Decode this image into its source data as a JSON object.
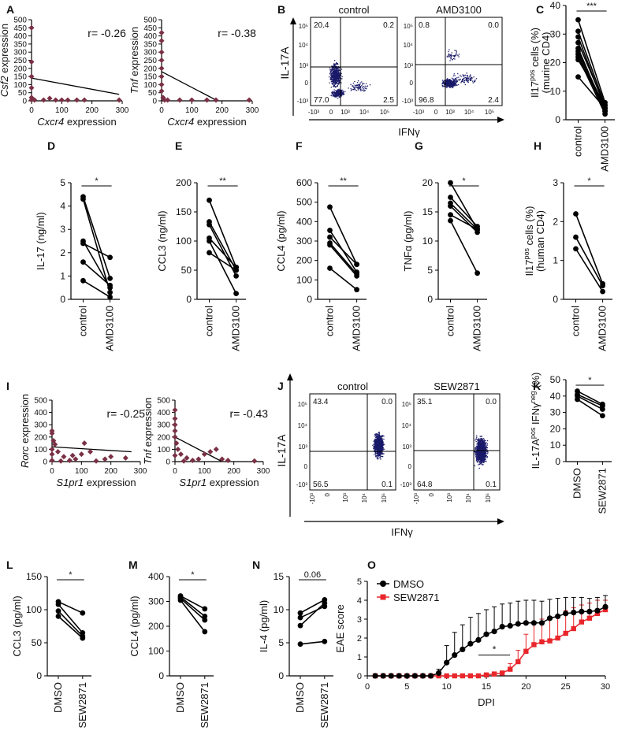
{
  "chart_data": [
    {
      "id": "A1",
      "panel": "A",
      "type": "scatter",
      "xlabel": "Cxcr4 expression",
      "ylabel": "Csf2 expression",
      "ylabel_italic": "Csf2",
      "xlabel_italic": "Cxcr4",
      "xticks": [
        0,
        100,
        200,
        300
      ],
      "yticks": [
        0,
        50,
        100,
        150,
        200,
        250,
        300,
        350,
        400,
        450,
        500
      ],
      "xlim": [
        0,
        300
      ],
      "ylim": [
        0,
        500
      ],
      "annotation": "r= -0.26",
      "point_color": "#7a3045",
      "points": [
        [
          0,
          450
        ],
        [
          0,
          240
        ],
        [
          0,
          150
        ],
        [
          0,
          80
        ],
        [
          0,
          20
        ],
        [
          0,
          5
        ],
        [
          10,
          5
        ],
        [
          40,
          5
        ],
        [
          60,
          15
        ],
        [
          80,
          5
        ],
        [
          100,
          5
        ],
        [
          120,
          5
        ],
        [
          150,
          5
        ],
        [
          175,
          5
        ],
        [
          290,
          5
        ]
      ],
      "trend": [
        [
          0,
          140
        ],
        [
          290,
          40
        ]
      ]
    },
    {
      "id": "A2",
      "panel": "A",
      "type": "scatter",
      "xlabel": "Cxcr4 expression",
      "ylabel": "Tnf expression",
      "ylabel_italic": "Tnf",
      "xlabel_italic": "Cxcr4",
      "xticks": [
        0,
        100,
        200,
        300
      ],
      "yticks": [
        0,
        50,
        100,
        150,
        200,
        250,
        300,
        350,
        400,
        450,
        500
      ],
      "xlim": [
        0,
        300
      ],
      "ylim": [
        0,
        500
      ],
      "annotation": "r= -0.38",
      "point_color": "#7a3045",
      "points": [
        [
          0,
          420
        ],
        [
          0,
          370
        ],
        [
          0,
          300
        ],
        [
          0,
          250
        ],
        [
          0,
          200
        ],
        [
          0,
          150
        ],
        [
          0,
          100
        ],
        [
          0,
          60
        ],
        [
          5,
          20
        ],
        [
          10,
          5
        ],
        [
          20,
          5
        ],
        [
          60,
          5
        ],
        [
          100,
          5
        ],
        [
          150,
          5
        ],
        [
          180,
          5
        ],
        [
          290,
          5
        ]
      ],
      "trend": [
        [
          0,
          180
        ],
        [
          185,
          0
        ]
      ]
    },
    {
      "id": "C",
      "panel": "C",
      "type": "line",
      "categories": [
        "control",
        "AMD3100"
      ],
      "ylabel": "Il17pos cells (%) (murine CD4)",
      "ylim": [
        0,
        40
      ],
      "yticks": [
        0,
        10,
        20,
        30,
        40
      ],
      "significance": "***",
      "pairs": [
        [
          35,
          6
        ],
        [
          31,
          5
        ],
        [
          29,
          4
        ],
        [
          27,
          5
        ],
        [
          25,
          3
        ],
        [
          24,
          4
        ],
        [
          23,
          3
        ],
        [
          22,
          2
        ],
        [
          21,
          5
        ],
        [
          15,
          4
        ]
      ]
    },
    {
      "id": "D",
      "panel": "D",
      "type": "line",
      "categories": [
        "control",
        "AMD3100"
      ],
      "ylabel": "IL-17 (ng/ml)",
      "ylim": [
        0,
        5
      ],
      "yticks": [
        0,
        1,
        2,
        3,
        4,
        5
      ],
      "significance": "*",
      "pairs": [
        [
          4.4,
          0.9
        ],
        [
          4.3,
          0.3
        ],
        [
          2.5,
          0.5
        ],
        [
          2.4,
          1.8
        ],
        [
          1.6,
          0.6
        ],
        [
          0.8,
          0.1
        ]
      ]
    },
    {
      "id": "E",
      "panel": "E",
      "type": "line",
      "categories": [
        "control",
        "AMD3100"
      ],
      "ylabel": "CCL3 (ng/ml)",
      "ylim": [
        0,
        200
      ],
      "yticks": [
        0,
        50,
        100,
        150,
        200
      ],
      "significance": "**",
      "pairs": [
        [
          170,
          55
        ],
        [
          133,
          50
        ],
        [
          128,
          40
        ],
        [
          105,
          55
        ],
        [
          100,
          10
        ],
        [
          80,
          50
        ]
      ]
    },
    {
      "id": "F",
      "panel": "F",
      "type": "line",
      "categories": [
        "control",
        "AMD3100"
      ],
      "ylabel": "CCL4 (pg/ml)",
      "ylim": [
        0,
        600
      ],
      "yticks": [
        0,
        100,
        200,
        300,
        400,
        500,
        600
      ],
      "significance": "**",
      "pairs": [
        [
          475,
          180
        ],
        [
          355,
          140
        ],
        [
          320,
          180
        ],
        [
          290,
          130
        ],
        [
          280,
          120
        ],
        [
          160,
          50
        ]
      ]
    },
    {
      "id": "G",
      "panel": "G",
      "type": "line",
      "categories": [
        "control",
        "AMD3100"
      ],
      "ylabel": "TNFα (pg/ml)",
      "ylim": [
        0,
        20
      ],
      "yticks": [
        0,
        5,
        10,
        15,
        20
      ],
      "significance": "*",
      "pairs": [
        [
          20,
          12
        ],
        [
          17.5,
          12.5
        ],
        [
          16.5,
          12
        ],
        [
          16,
          11.5
        ],
        [
          14.5,
          12
        ],
        [
          13.5,
          4.5
        ]
      ]
    },
    {
      "id": "H",
      "panel": "H",
      "type": "line",
      "categories": [
        "control",
        "AMD3100"
      ],
      "ylabel": "Il17pos cells (%) (human CD4)",
      "ylim": [
        0,
        3
      ],
      "yticks": [
        0,
        1,
        2,
        3
      ],
      "significance": "*",
      "pairs": [
        [
          2.2,
          0.4
        ],
        [
          1.6,
          0.35
        ],
        [
          1.3,
          0.2
        ]
      ]
    },
    {
      "id": "I1",
      "panel": "I",
      "type": "scatter",
      "xlabel": "S1pr1 expression",
      "ylabel": "Rorc expression",
      "ylabel_italic": "Rorc",
      "xlabel_italic": "S1pr1",
      "xticks": [
        0,
        100,
        200,
        300
      ],
      "yticks": [
        0,
        100,
        200,
        300,
        400,
        500
      ],
      "xlim": [
        0,
        300
      ],
      "ylim": [
        0,
        500
      ],
      "annotation": "r= -0.25",
      "point_color": "#7a3045",
      "points": [
        [
          0,
          250
        ],
        [
          0,
          230
        ],
        [
          5,
          170
        ],
        [
          10,
          140
        ],
        [
          0,
          100
        ],
        [
          20,
          80
        ],
        [
          0,
          60
        ],
        [
          40,
          40
        ],
        [
          60,
          10
        ],
        [
          80,
          20
        ],
        [
          100,
          60
        ],
        [
          110,
          150
        ],
        [
          130,
          80
        ],
        [
          150,
          5
        ],
        [
          180,
          20
        ],
        [
          200,
          40
        ],
        [
          250,
          30
        ],
        [
          0,
          10
        ],
        [
          30,
          5
        ],
        [
          70,
          50
        ]
      ],
      "trend": [
        [
          0,
          120
        ],
        [
          270,
          80
        ]
      ]
    },
    {
      "id": "I2",
      "panel": "I",
      "type": "scatter",
      "xlabel": "S1pr1 expression",
      "ylabel": "Tnf expression",
      "ylabel_italic": "Tnf",
      "xlabel_italic": "S1pr1",
      "xticks": [
        0,
        100,
        200,
        300
      ],
      "yticks": [
        0,
        100,
        200,
        300,
        400,
        500
      ],
      "xlim": [
        0,
        300
      ],
      "ylim": [
        0,
        500
      ],
      "annotation": "r= -0.43",
      "point_color": "#7a3045",
      "points": [
        [
          0,
          420
        ],
        [
          0,
          350
        ],
        [
          0,
          300
        ],
        [
          0,
          250
        ],
        [
          0,
          200
        ],
        [
          5,
          150
        ],
        [
          10,
          100
        ],
        [
          20,
          60
        ],
        [
          40,
          30
        ],
        [
          60,
          10
        ],
        [
          80,
          20
        ],
        [
          100,
          60
        ],
        [
          120,
          80
        ],
        [
          140,
          100
        ],
        [
          160,
          20
        ],
        [
          180,
          10
        ],
        [
          270,
          5
        ],
        [
          30,
          5
        ],
        [
          0,
          50
        ]
      ],
      "trend": [
        [
          0,
          200
        ],
        [
          160,
          0
        ]
      ]
    },
    {
      "id": "K",
      "panel": "K",
      "type": "line",
      "categories": [
        "DMSO",
        "SEW2871"
      ],
      "ylabel": "IL-17Apos IFNγneg (%)",
      "ylim": [
        0,
        50
      ],
      "yticks": [
        0,
        10,
        20,
        30,
        40,
        50
      ],
      "significance": "*",
      "pairs": [
        [
          43,
          35
        ],
        [
          41,
          34
        ],
        [
          40,
          32
        ],
        [
          38,
          28
        ]
      ]
    },
    {
      "id": "L",
      "panel": "L",
      "type": "line",
      "categories": [
        "DMSO",
        "SEW2871"
      ],
      "ylabel": "CCL3 (pg/ml)",
      "ylim": [
        0,
        150
      ],
      "yticks": [
        0,
        50,
        100,
        150
      ],
      "significance": "*",
      "pairs": [
        [
          112,
          95
        ],
        [
          108,
          65
        ],
        [
          98,
          60
        ],
        [
          90,
          57
        ]
      ]
    },
    {
      "id": "M",
      "panel": "M",
      "type": "line",
      "categories": [
        "DMSO",
        "SEW2871"
      ],
      "ylabel": "CCL4 (pg/ml)",
      "ylim": [
        0,
        400
      ],
      "yticks": [
        0,
        100,
        200,
        300,
        400
      ],
      "significance": "*",
      "pairs": [
        [
          322,
          270
        ],
        [
          318,
          240
        ],
        [
          312,
          225
        ],
        [
          305,
          178
        ]
      ]
    },
    {
      "id": "N",
      "panel": "N",
      "type": "line",
      "categories": [
        "DMSO",
        "SEW2871"
      ],
      "ylabel": "IL-4 (pg/ml)",
      "ylim": [
        0,
        15
      ],
      "yticks": [
        0,
        5,
        10,
        15
      ],
      "significance": "0.06",
      "pairs": [
        [
          9.5,
          11.5
        ],
        [
          8.8,
          10.5
        ],
        [
          7.6,
          11
        ],
        [
          4.8,
          5.2
        ]
      ]
    },
    {
      "id": "O",
      "panel": "O",
      "type": "line",
      "xlabel": "DPI",
      "ylabel": "EAE score",
      "xlim": [
        0,
        30
      ],
      "ylim": [
        0,
        5
      ],
      "xticks": [
        0,
        5,
        10,
        15,
        20,
        25,
        30
      ],
      "yticks": [
        0,
        1,
        2,
        3,
        4,
        5
      ],
      "significance": "*",
      "series": [
        {
          "name": "DMSO",
          "color": "#000000",
          "marker": "circle",
          "x": [
            1,
            2,
            3,
            4,
            5,
            6,
            7,
            8,
            9,
            10,
            11,
            12,
            13,
            14,
            15,
            16,
            17,
            18,
            19,
            20,
            21,
            22,
            23,
            24,
            25,
            26,
            27,
            28,
            29,
            30
          ],
          "y": [
            0,
            0,
            0,
            0,
            0,
            0,
            0,
            0,
            0.15,
            0.7,
            1.1,
            1.4,
            1.7,
            1.9,
            2.2,
            2.35,
            2.6,
            2.65,
            2.75,
            2.8,
            2.8,
            2.8,
            3.05,
            3.15,
            3.3,
            3.35,
            3.4,
            3.4,
            3.45,
            3.65
          ],
          "err": [
            0,
            0,
            0,
            0,
            0,
            0,
            0,
            0,
            0.2,
            0.9,
            1.2,
            1.3,
            1.4,
            1.4,
            1.3,
            1.3,
            1.2,
            1.2,
            1.2,
            1.2,
            1.2,
            1.15,
            1.0,
            0.95,
            0.85,
            0.8,
            0.75,
            0.7,
            0.7,
            0.6
          ]
        },
        {
          "name": "SEW2871",
          "color": "#e8262b",
          "marker": "square",
          "x": [
            1,
            2,
            3,
            4,
            5,
            6,
            7,
            8,
            9,
            10,
            11,
            12,
            13,
            14,
            15,
            16,
            17,
            18,
            19,
            20,
            21,
            22,
            23,
            24,
            25,
            26,
            27,
            28,
            29,
            30
          ],
          "y": [
            0,
            0,
            0,
            0,
            0,
            0,
            0,
            0,
            0,
            0,
            0,
            0,
            0,
            0,
            0.05,
            0.1,
            0.15,
            0.35,
            0.75,
            1.3,
            1.65,
            1.8,
            1.85,
            2.0,
            2.25,
            2.5,
            2.85,
            3.05,
            3.3,
            3.5
          ],
          "err": [
            0,
            0,
            0,
            0,
            0,
            0,
            0,
            0,
            0,
            0,
            0,
            0,
            0,
            0,
            0.05,
            0.1,
            0.1,
            0.3,
            0.6,
            0.9,
            1.2,
            1.2,
            1.2,
            1.2,
            1.2,
            1.1,
            0.9,
            0.8,
            0.7,
            0.5
          ]
        }
      ]
    }
  ],
  "flow": [
    {
      "id": "B1",
      "panel": "B",
      "title": "control",
      "q": [
        "20.4",
        "0.2",
        "77.0",
        "2.5"
      ]
    },
    {
      "id": "B2",
      "panel": "B",
      "title": "AMD3100",
      "q": [
        "0.8",
        "0.0",
        "96.8",
        "2.4"
      ]
    },
    {
      "id": "J1",
      "panel": "J",
      "title": "control",
      "q": [
        "43.4",
        "0.0",
        "56.5",
        "0.1"
      ]
    },
    {
      "id": "J2",
      "panel": "J",
      "title": "SEW2871",
      "q": [
        "35.1",
        "0.0",
        "64.8",
        "0.1"
      ]
    }
  ],
  "flow_axes": {
    "y_label": "IL-17A",
    "x_label": "IFNγ",
    "ticks": [
      "-10³",
      "0",
      "10³",
      "10⁴",
      "10⁵"
    ]
  },
  "panel_labels": [
    "A",
    "B",
    "C",
    "D",
    "E",
    "F",
    "G",
    "H",
    "I",
    "J",
    "K",
    "L",
    "M",
    "N",
    "O"
  ],
  "colors": {
    "points": "#7a3045",
    "dmso": "#000000",
    "sew": "#e8262b",
    "flow_dots": "#1a1a6a"
  }
}
